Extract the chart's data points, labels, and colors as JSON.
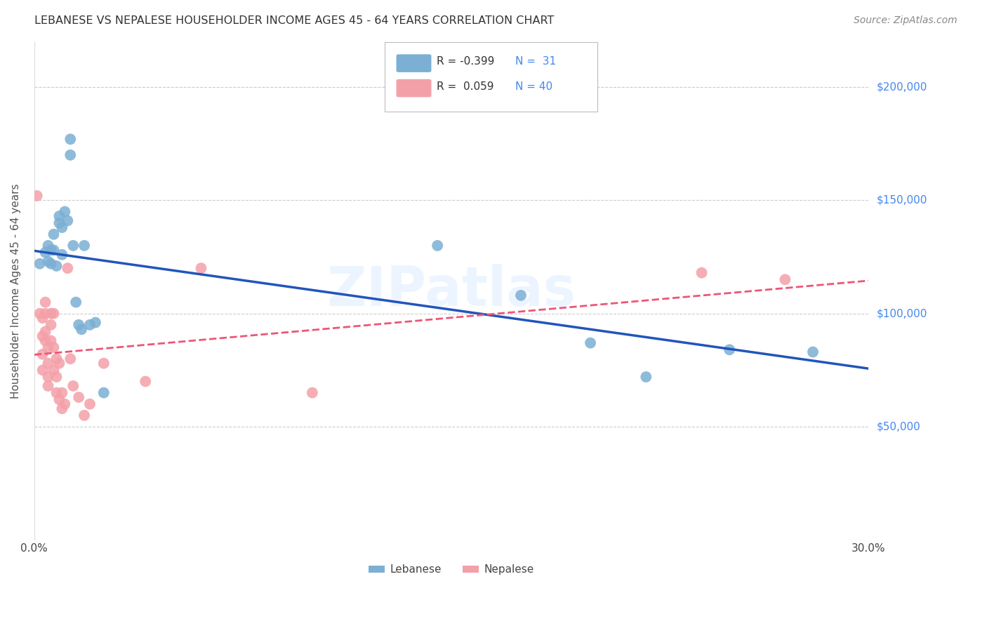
{
  "title": "LEBANESE VS NEPALESE HOUSEHOLDER INCOME AGES 45 - 64 YEARS CORRELATION CHART",
  "source": "Source: ZipAtlas.com",
  "ylabel": "Householder Income Ages 45 - 64 years",
  "watermark": "ZIPatlas",
  "legend_lebanese": "Lebanese",
  "legend_nepalese": "Nepalese",
  "xlim": [
    0.0,
    0.3
  ],
  "ylim": [
    0,
    220000
  ],
  "yticks": [
    0,
    50000,
    100000,
    150000,
    200000
  ],
  "ytick_labels": [
    "",
    "$50,000",
    "$100,000",
    "$150,000",
    "$200,000"
  ],
  "xticks": [
    0.0,
    0.05,
    0.1,
    0.15,
    0.2,
    0.25,
    0.3
  ],
  "xtick_labels": [
    "0.0%",
    "",
    "",
    "",
    "",
    "",
    "30.0%"
  ],
  "lebanese_x": [
    0.002,
    0.004,
    0.005,
    0.005,
    0.006,
    0.006,
    0.007,
    0.007,
    0.008,
    0.009,
    0.009,
    0.01,
    0.01,
    0.011,
    0.012,
    0.013,
    0.013,
    0.014,
    0.015,
    0.016,
    0.017,
    0.018,
    0.02,
    0.022,
    0.025,
    0.145,
    0.175,
    0.2,
    0.22,
    0.25,
    0.28
  ],
  "lebanese_y": [
    122000,
    127000,
    123000,
    130000,
    122000,
    128000,
    128000,
    135000,
    121000,
    140000,
    143000,
    126000,
    138000,
    145000,
    141000,
    170000,
    177000,
    130000,
    105000,
    95000,
    93000,
    130000,
    95000,
    96000,
    65000,
    130000,
    108000,
    87000,
    72000,
    84000,
    83000
  ],
  "nepalese_x": [
    0.001,
    0.002,
    0.003,
    0.003,
    0.003,
    0.003,
    0.004,
    0.004,
    0.004,
    0.004,
    0.005,
    0.005,
    0.005,
    0.005,
    0.006,
    0.006,
    0.006,
    0.007,
    0.007,
    0.007,
    0.008,
    0.008,
    0.008,
    0.009,
    0.009,
    0.01,
    0.01,
    0.011,
    0.012,
    0.013,
    0.014,
    0.016,
    0.018,
    0.02,
    0.025,
    0.04,
    0.06,
    0.1,
    0.24,
    0.27
  ],
  "nepalese_y": [
    152000,
    100000,
    98000,
    90000,
    82000,
    75000,
    105000,
    100000,
    92000,
    88000,
    85000,
    78000,
    72000,
    68000,
    100000,
    95000,
    88000,
    100000,
    85000,
    75000,
    80000,
    72000,
    65000,
    78000,
    62000,
    65000,
    58000,
    60000,
    120000,
    80000,
    68000,
    63000,
    55000,
    60000,
    78000,
    70000,
    120000,
    65000,
    118000,
    115000
  ],
  "blue_color": "#7BAFD4",
  "pink_color": "#F4A0A8",
  "blue_line_color": "#2255BB",
  "pink_line_color": "#EE5577",
  "background_color": "#FFFFFF",
  "grid_color": "#CCCCCC",
  "title_color": "#333333",
  "axis_label_color": "#555555",
  "ytick_color": "#4488EE",
  "xtick_color": "#444444",
  "source_color": "#888888",
  "watermark_color": "#DDEEFF",
  "legend_r_color": "#333333",
  "legend_n_color": "#4488EE"
}
